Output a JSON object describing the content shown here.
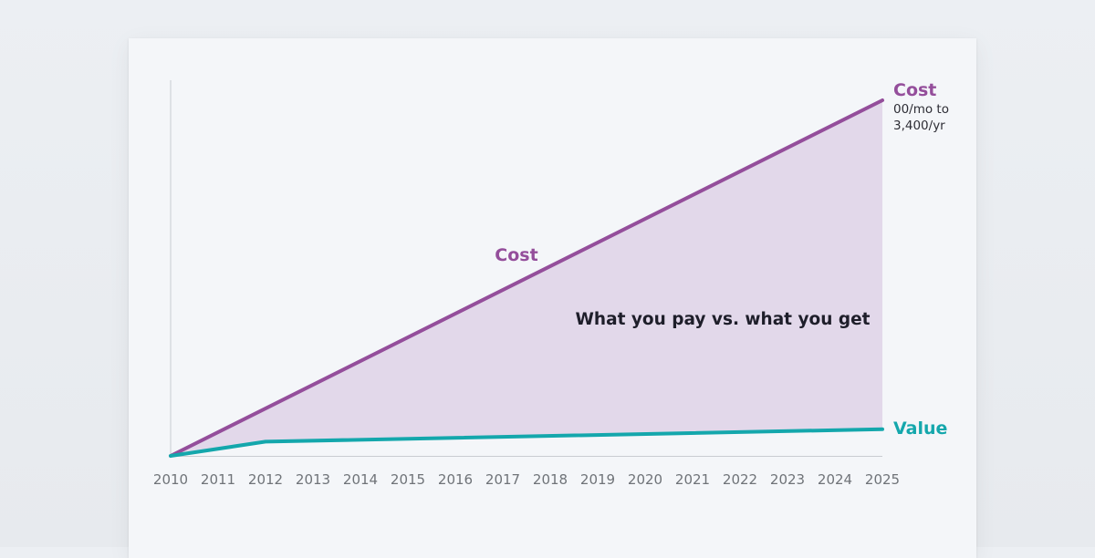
{
  "chart_data": {
    "type": "area",
    "x_ticks": [
      "2010",
      "2011",
      "2012",
      "2013",
      "2014",
      "2015",
      "2016",
      "2017",
      "2018",
      "2019",
      "2020",
      "2021",
      "2022",
      "2023",
      "2024",
      "2025"
    ],
    "series": [
      {
        "name": "Cost",
        "color": "#944e9b",
        "x": [
          2010,
          2025
        ],
        "y": [
          0,
          1.0
        ]
      },
      {
        "name": "Value",
        "color": "#14a7ac",
        "x": [
          2010,
          2012,
          2025
        ],
        "y": [
          0,
          0.04,
          0.075
        ]
      }
    ],
    "fill_between": {
      "color": "#e2d8ea"
    },
    "ylim": [
      0,
      1.0
    ],
    "xlim": [
      2010,
      2025
    ],
    "annotations": {
      "cost_line_label": "Cost",
      "center_text": "What you pay vs. what you get",
      "cost_end_title": "Cost",
      "cost_end_line1": "00/mo to",
      "cost_end_line2": "3,400/yr",
      "value_end_title": "Value"
    },
    "grid": false
  }
}
